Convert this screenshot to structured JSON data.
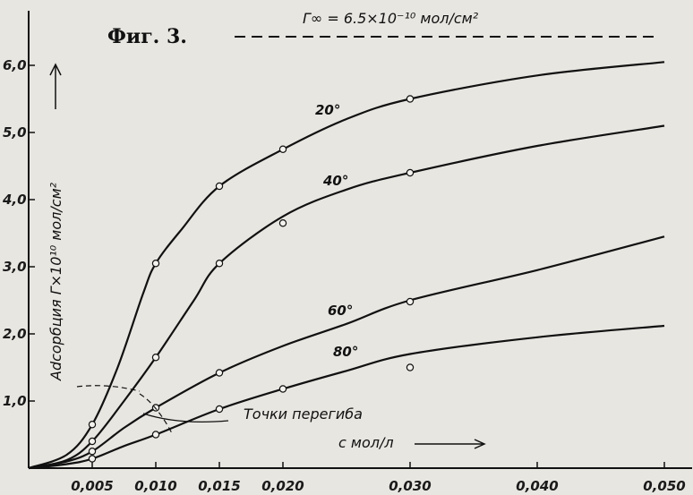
{
  "chart_data": {
    "type": "line",
    "title": "Фиг. 3.",
    "ylabel": "Adcорбция Г×10¹⁰ мол/см²",
    "xlabel": "c мол/л",
    "xlim": [
      0,
      0.052
    ],
    "ylim": [
      0,
      6.5
    ],
    "x_ticks": [
      "0,005",
      "0,010",
      "0,015",
      "0,020",
      "0,030",
      "0,040",
      "0,050"
    ],
    "x_tick_values": [
      0.005,
      0.01,
      0.015,
      0.02,
      0.03,
      0.04,
      0.05
    ],
    "y_ticks": [
      "1,0",
      "2,0",
      "3,0",
      "4,0",
      "5,0",
      "6,0"
    ],
    "y_tick_values": [
      1,
      2,
      3,
      4,
      5,
      6
    ],
    "grid": false,
    "limit_line": {
      "label": "Г∞ = 6.5×10⁻¹⁰ мол/см²",
      "y": 6.5
    },
    "inflection_label": "Точки перегиба",
    "series": [
      {
        "name": "20°",
        "curve": [
          [
            0,
            0
          ],
          [
            0.003,
            0.2
          ],
          [
            0.005,
            0.65
          ],
          [
            0.007,
            1.5
          ],
          [
            0.009,
            2.6
          ],
          [
            0.01,
            3.05
          ],
          [
            0.012,
            3.55
          ],
          [
            0.015,
            4.2
          ],
          [
            0.02,
            4.75
          ],
          [
            0.025,
            5.2
          ],
          [
            0.03,
            5.5
          ],
          [
            0.04,
            5.85
          ],
          [
            0.05,
            6.05
          ]
        ],
        "points": [
          [
            0.005,
            0.65
          ],
          [
            0.01,
            3.05
          ],
          [
            0.015,
            4.2
          ],
          [
            0.02,
            4.75
          ],
          [
            0.03,
            5.5
          ]
        ]
      },
      {
        "name": "40°",
        "curve": [
          [
            0,
            0
          ],
          [
            0.003,
            0.12
          ],
          [
            0.005,
            0.4
          ],
          [
            0.0075,
            1.0
          ],
          [
            0.01,
            1.65
          ],
          [
            0.013,
            2.5
          ],
          [
            0.015,
            3.05
          ],
          [
            0.02,
            3.75
          ],
          [
            0.025,
            4.15
          ],
          [
            0.03,
            4.4
          ],
          [
            0.04,
            4.8
          ],
          [
            0.05,
            5.1
          ]
        ],
        "points": [
          [
            0.005,
            0.4
          ],
          [
            0.01,
            1.65
          ],
          [
            0.015,
            3.05
          ],
          [
            0.02,
            3.65
          ],
          [
            0.03,
            4.4
          ]
        ]
      },
      {
        "name": "60°",
        "curve": [
          [
            0,
            0
          ],
          [
            0.003,
            0.1
          ],
          [
            0.005,
            0.25
          ],
          [
            0.0075,
            0.6
          ],
          [
            0.01,
            0.9
          ],
          [
            0.015,
            1.42
          ],
          [
            0.02,
            1.82
          ],
          [
            0.025,
            2.15
          ],
          [
            0.03,
            2.5
          ],
          [
            0.04,
            2.95
          ],
          [
            0.05,
            3.45
          ]
        ],
        "points": [
          [
            0.005,
            0.25
          ],
          [
            0.01,
            0.9
          ],
          [
            0.015,
            1.42
          ],
          [
            0.03,
            2.48
          ]
        ]
      },
      {
        "name": "80°",
        "curve": [
          [
            0,
            0
          ],
          [
            0.003,
            0.06
          ],
          [
            0.005,
            0.14
          ],
          [
            0.0075,
            0.33
          ],
          [
            0.01,
            0.5
          ],
          [
            0.015,
            0.88
          ],
          [
            0.02,
            1.18
          ],
          [
            0.025,
            1.45
          ],
          [
            0.03,
            1.7
          ],
          [
            0.04,
            1.95
          ],
          [
            0.05,
            2.12
          ]
        ],
        "points": [
          [
            0.005,
            0.14
          ],
          [
            0.01,
            0.5
          ],
          [
            0.015,
            0.88
          ],
          [
            0.02,
            1.18
          ],
          [
            0.03,
            1.5
          ]
        ]
      }
    ]
  }
}
